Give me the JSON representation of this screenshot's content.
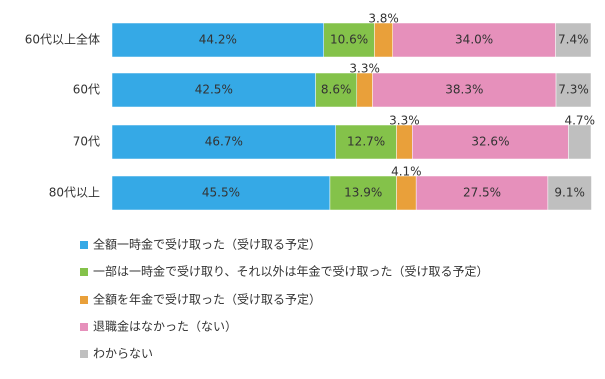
{
  "chart_data": {
    "type": "stacked-bar-horizontal",
    "categories": [
      "60代以上全体",
      "60代",
      "70代",
      "80代以上"
    ],
    "xlim": [
      0,
      100
    ],
    "series": [
      {
        "name": "全額一時金で受け取った（受け取る予定）",
        "color": "#35a9e6",
        "values": [
          44.2,
          42.5,
          46.7,
          45.5
        ],
        "value_labels": [
          "44.2%",
          "42.5%",
          "46.7%",
          "45.5%"
        ]
      },
      {
        "name": "一部は一時金で受け取り、それ以外は年金で受け取った（受け取る予定）",
        "color": "#84c24a",
        "values": [
          10.6,
          8.6,
          12.7,
          13.9
        ],
        "value_labels": [
          "10.6%",
          "8.6%",
          "12.7%",
          "13.9%"
        ]
      },
      {
        "name": "全額を年金で受け取った（受け取る予定）",
        "color": "#e9a03a",
        "values": [
          3.8,
          3.3,
          3.3,
          4.1
        ],
        "value_labels": [
          "3.8%",
          "3.3%",
          "3.3%",
          "4.1%"
        ]
      },
      {
        "name": "退職金はなかった（ない）",
        "color": "#e690bb",
        "values": [
          34.0,
          38.3,
          32.6,
          27.5
        ],
        "value_labels": [
          "34.0%",
          "38.3%",
          "32.6%",
          "27.5%"
        ]
      },
      {
        "name": "わからない",
        "color": "#bfbfbf",
        "values": [
          7.4,
          7.3,
          4.7,
          9.1
        ],
        "value_labels": [
          "7.4%",
          "7.3%",
          "4.7%",
          "9.1%"
        ]
      }
    ]
  }
}
